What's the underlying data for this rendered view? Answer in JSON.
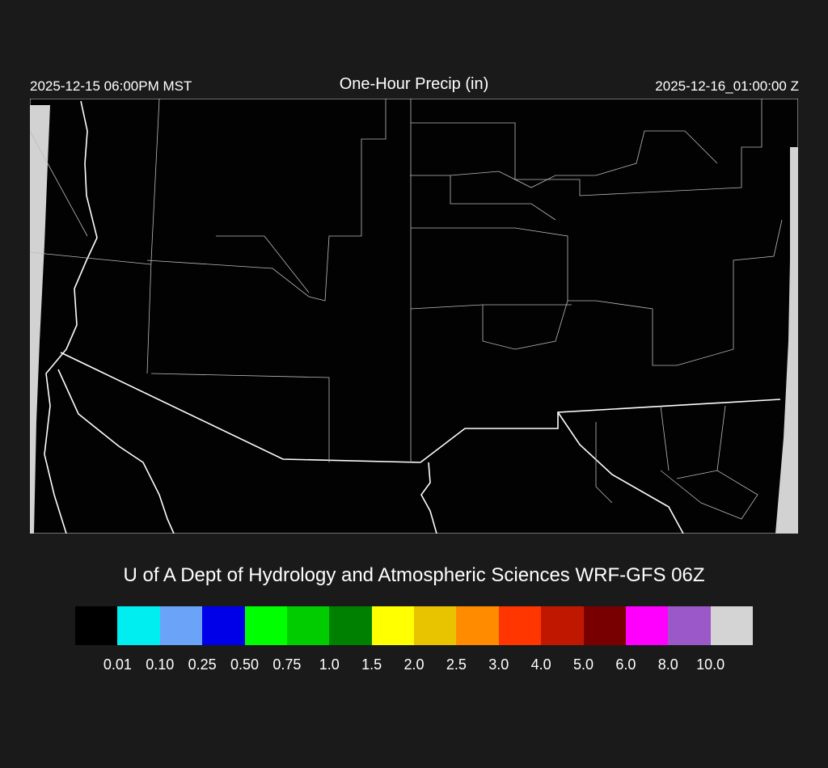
{
  "header": {
    "local_time": "2025-12-15 06:00PM MST",
    "title": "One-Hour Precip (in)",
    "utc_time": "2025-12-16_01:00:00 Z"
  },
  "credit": "U of A Dept of Hydrology and Atmospheric Sciences WRF-GFS 06Z",
  "legend": {
    "colors": [
      "#000000",
      "#00eef0",
      "#6aa3f8",
      "#0000e8",
      "#00ff00",
      "#00cc00",
      "#008000",
      "#ffff00",
      "#e8c400",
      "#ff8c00",
      "#ff3600",
      "#c01800",
      "#780000",
      "#ff00ff",
      "#9a58c8",
      "#d4d4d4"
    ],
    "labels": [
      "0.01",
      "0.10",
      "0.25",
      "0.50",
      "0.75",
      "1.0",
      "1.5",
      "2.0",
      "2.5",
      "3.0",
      "4.0",
      "5.0",
      "6.0",
      "8.0",
      "10.0"
    ]
  },
  "map": {
    "region": "Southwest US / Northern Mexico",
    "precip_shown": "none"
  }
}
